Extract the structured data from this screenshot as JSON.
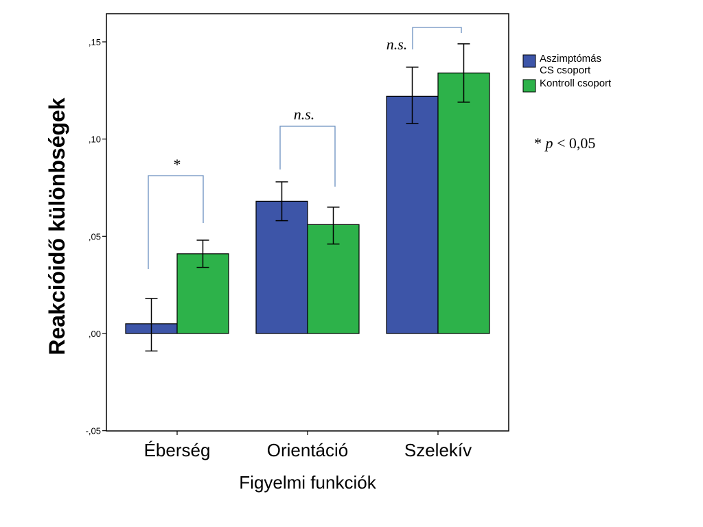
{
  "chart_data": {
    "type": "bar",
    "xlabel": "Figyelmi funkciók",
    "ylabel": "Reakcióidő különbségek",
    "ylim": [
      -0.05,
      0.16
    ],
    "yticks": [
      {
        "value": -0.05,
        "label": "-,05"
      },
      {
        "value": 0.0,
        "label": ",00"
      },
      {
        "value": 0.05,
        "label": ",05"
      },
      {
        "value": 0.1,
        "label": ",10"
      },
      {
        "value": 0.15,
        "label": ",15"
      }
    ],
    "categories": [
      "Éberség",
      "Orientáció",
      "Szelekív"
    ],
    "series": [
      {
        "name": "Aszimptómás CS csoport",
        "name_lines": [
          "Aszimptómás",
          "CS csoport"
        ],
        "color": "#3d55a8",
        "values": [
          0.005,
          0.068,
          0.122
        ],
        "err_low": [
          -0.009,
          0.058,
          0.108
        ],
        "err_high": [
          0.018,
          0.078,
          0.137
        ]
      },
      {
        "name": "Kontroll csoport",
        "name_lines": [
          "Kontroll csoport"
        ],
        "color": "#2db24a",
        "values": [
          0.041,
          0.056,
          0.134
        ],
        "err_low": [
          0.034,
          0.046,
          0.119
        ],
        "err_high": [
          0.048,
          0.065,
          0.149
        ]
      }
    ],
    "significance": [
      "*",
      "n.s.",
      "n.s."
    ],
    "significance_italic": [
      false,
      true,
      true
    ],
    "note": {
      "star": "*",
      "p": "p",
      "rest": "< 0,05"
    },
    "legend_position": "right",
    "grid": false
  }
}
